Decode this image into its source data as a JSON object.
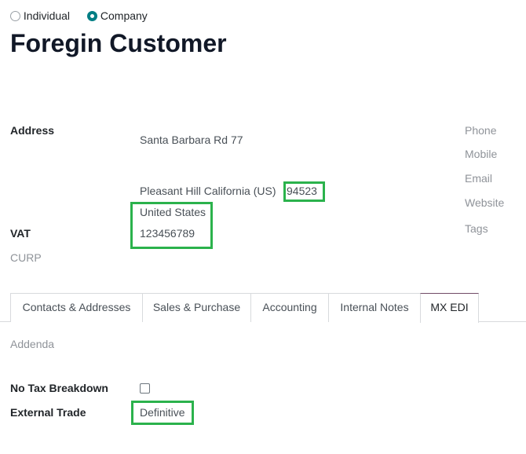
{
  "company_type": {
    "options": [
      "Individual",
      "Company"
    ],
    "selected": "Company"
  },
  "title": "Foregin Customer",
  "fields": {
    "address_label": "Address",
    "street": "Santa Barbara Rd  77",
    "city_line": "Pleasant Hill  California (US)",
    "zip": "94523",
    "country": "United States",
    "vat_label": "VAT",
    "vat": "123456789",
    "curp_label": "CURP"
  },
  "right_fields": [
    "Phone",
    "Mobile",
    "Email",
    "Website",
    "Tags"
  ],
  "tabs": [
    {
      "label": "Contacts & Addresses"
    },
    {
      "label": "Sales & Purchase"
    },
    {
      "label": "Accounting"
    },
    {
      "label": "Internal Notes"
    },
    {
      "label": "MX EDI",
      "active": true
    }
  ],
  "mx_edi": {
    "addenda_label": "Addenda",
    "no_tax_label": "No Tax Breakdown",
    "no_tax_checked": false,
    "external_trade_label": "External Trade",
    "external_trade": "Definitive"
  },
  "colors": {
    "accent": "#017e84",
    "highlight": "#2bb24c",
    "active_tab": "#714b67"
  }
}
